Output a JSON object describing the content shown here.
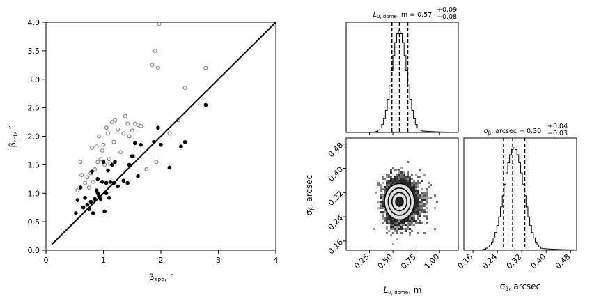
{
  "chart_data": [
    {
      "type": "scatter",
      "xlabel": "β_SPP, ″",
      "ylabel": "β_tot, ″",
      "xlim": [
        0,
        4
      ],
      "ylim": [
        0,
        4
      ],
      "xticks": [
        "0",
        "1",
        "2",
        "3",
        "4"
      ],
      "yticks": [
        "0.0",
        "0.5",
        "1.0",
        "1.5",
        "2.0",
        "2.5",
        "3.0",
        "3.5",
        "4.0"
      ],
      "reference_line": {
        "x": [
          0.1,
          4.0
        ],
        "y": [
          0.1,
          4.0
        ]
      },
      "series": [
        {
          "marker": "open-circle",
          "color": "#888888",
          "x": [
            0.55,
            0.6,
            0.62,
            0.68,
            0.72,
            0.75,
            0.78,
            0.8,
            0.82,
            0.85,
            0.88,
            0.9,
            0.92,
            0.95,
            0.98,
            1.0,
            1.02,
            1.05,
            1.08,
            1.1,
            1.12,
            1.15,
            1.18,
            1.2,
            1.25,
            1.3,
            1.35,
            1.38,
            1.42,
            1.45,
            1.5,
            1.52,
            1.55,
            1.6,
            1.65,
            1.75,
            1.85,
            1.9,
            1.92,
            1.95,
            1.97,
            2.15,
            2.3,
            2.42,
            2.78
          ],
          "y": [
            1.05,
            1.55,
            1.32,
            1.18,
            1.28,
            1.1,
            1.35,
            1.8,
            1.2,
            1.42,
            1.82,
            1.55,
            2.0,
            1.6,
            1.75,
            1.85,
            1.5,
            2.15,
            2.05,
            1.6,
            1.52,
            2.25,
            1.9,
            2.28,
            2.12,
            1.72,
            2.05,
            2.35,
            2.22,
            2.0,
            2.1,
            1.65,
            2.22,
            2.2,
            2.18,
            1.42,
            3.25,
            3.5,
            1.55,
            3.2,
            3.97,
            2.05,
            2.28,
            2.85,
            3.2
          ]
        },
        {
          "marker": "filled-circle",
          "color": "#000000",
          "x": [
            0.52,
            0.55,
            0.6,
            0.65,
            0.68,
            0.72,
            0.75,
            0.78,
            0.8,
            0.82,
            0.85,
            0.88,
            0.9,
            0.9,
            0.92,
            0.95,
            0.98,
            1.0,
            1.02,
            1.05,
            1.05,
            1.08,
            1.1,
            1.12,
            1.15,
            1.18,
            1.2,
            1.25,
            1.35,
            1.42,
            1.45,
            1.5,
            1.55,
            1.6,
            1.65,
            1.88,
            1.95,
            2.0,
            2.15,
            2.35,
            2.42,
            2.78
          ],
          "y": [
            0.65,
            0.88,
            1.1,
            0.75,
            0.92,
            0.8,
            0.72,
            0.85,
            1.38,
            0.65,
            0.9,
            1.05,
            1.0,
            1.25,
            0.95,
            0.9,
            1.2,
            1.55,
            0.68,
            1.0,
            1.18,
            1.4,
            0.92,
            1.2,
            1.5,
            1.18,
            1.55,
            1.12,
            1.22,
            1.18,
            1.5,
            1.65,
            1.88,
            1.3,
            1.85,
            1.9,
            2.15,
            1.85,
            1.45,
            1.82,
            1.9,
            2.55
          ]
        }
      ]
    },
    {
      "type": "histogram",
      "title_base": "L",
      "title_sub": "0, dome",
      "title_mid": ", m = 0.57",
      "title_sup": "+0.09",
      "title_low": "−0.08",
      "xlim": [
        0.0,
        1.2
      ],
      "bins_from": 0.0,
      "bin_width": 0.02,
      "mean": 0.57,
      "sigma": 0.08,
      "quantile_lines": [
        0.49,
        0.57,
        0.66
      ]
    },
    {
      "type": "heatmap",
      "xlabel_base": "L",
      "xlabel_sub": "0, dome",
      "xlabel_tail": ", m",
      "ylabel": "σ_β, arcsec",
      "xlim": [
        0.0,
        1.2
      ],
      "ylim": [
        0.13,
        0.5
      ],
      "xticks": [
        0.25,
        0.5,
        0.75,
        1.0
      ],
      "xtick_labels": [
        "0.25",
        "0.50",
        "0.75",
        "1.00"
      ],
      "yticks": [
        0.16,
        0.24,
        0.32,
        0.4,
        0.48
      ],
      "ytick_labels": [
        "0.16",
        "0.24",
        "0.32",
        "0.40",
        "0.48"
      ],
      "center": [
        0.57,
        0.29
      ],
      "spread": [
        0.08,
        0.03
      ]
    },
    {
      "type": "histogram",
      "title_base": "σ",
      "title_sub": "β",
      "title_mid": ", arcsec = 0.30",
      "title_sup": "+0.04",
      "title_low": "−0.03",
      "xlabel": "σ_β, arcsec",
      "xlim": [
        0.13,
        0.5
      ],
      "xticks": [
        0.16,
        0.24,
        0.32,
        0.4,
        0.48
      ],
      "xtick_labels": [
        "0.16",
        "0.24",
        "0.32",
        "0.40",
        "0.48"
      ],
      "bins_from": 0.13,
      "bin_width": 0.006,
      "mean": 0.295,
      "sigma": 0.032,
      "quantile_lines": [
        0.26,
        0.29,
        0.33
      ]
    }
  ]
}
